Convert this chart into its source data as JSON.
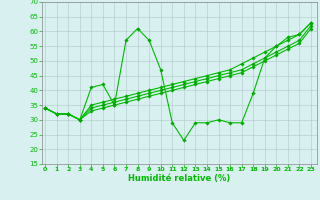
{
  "xlabel": "Humidité relative (%)",
  "bg_color": "#d8f0f0",
  "grid_color": "#b0c8c8",
  "line_color": "#00bb00",
  "marker_color": "#00aa00",
  "ylim": [
    15,
    70
  ],
  "yticks": [
    15,
    20,
    25,
    30,
    35,
    40,
    45,
    50,
    55,
    60,
    65,
    70
  ],
  "xlim": [
    0,
    23
  ],
  "xticks": [
    0,
    1,
    2,
    3,
    4,
    5,
    6,
    7,
    8,
    9,
    10,
    11,
    12,
    13,
    14,
    15,
    16,
    17,
    18,
    19,
    20,
    21,
    22,
    23
  ],
  "line1": [
    34,
    32,
    32,
    30,
    41,
    42,
    35,
    57,
    61,
    57,
    47,
    29,
    23,
    29,
    29,
    30,
    29,
    29,
    39,
    51,
    55,
    58,
    59,
    63
  ],
  "line2": [
    34,
    32,
    32,
    30,
    35,
    36,
    37,
    38,
    39,
    40,
    41,
    42,
    43,
    44,
    45,
    46,
    47,
    49,
    51,
    53,
    55,
    57,
    59,
    63
  ],
  "line3": [
    34,
    32,
    32,
    30,
    34,
    35,
    36,
    37,
    38,
    39,
    40,
    41,
    42,
    43,
    44,
    45,
    46,
    47,
    49,
    51,
    53,
    55,
    57,
    62
  ],
  "line4": [
    34,
    32,
    32,
    30,
    33,
    34,
    35,
    36,
    37,
    38,
    39,
    40,
    41,
    42,
    43,
    44,
    45,
    46,
    48,
    50,
    52,
    54,
    56,
    61
  ]
}
